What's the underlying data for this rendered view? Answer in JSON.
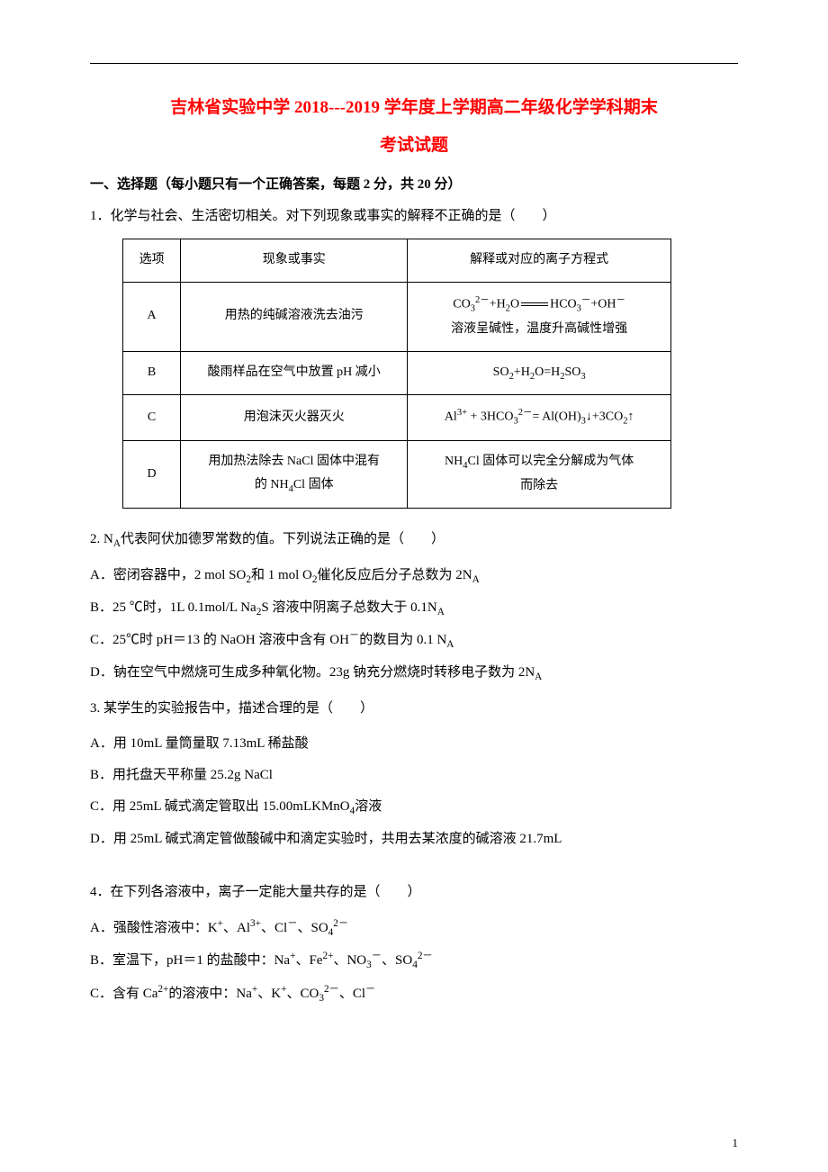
{
  "title_line1": "吉林省实验中学 2018---2019 学年度上学期高二年级化学学科期末",
  "title_line2": "考试试题",
  "section1_heading": "一、选择题（每小题只有一个正确答案，每题 2 分，共 20 分）",
  "q1": {
    "stem": "1．化学与社会、生活密切相关。对下列现象或事实的解释不正确的是（　　）",
    "header": {
      "c1": "选项",
      "c2": "现象或事实",
      "c3": "解释或对应的离子方程式"
    },
    "rows": [
      {
        "opt": "A",
        "fact": "用热的纯碱溶液洗去油污",
        "explain_html": "CO<sub>3</sub><sup>2－</sup>+H<sub>2</sub>O<span class=\"eqarrow\"></span>HCO<sub>3</sub><sup>－</sup>+OH<sup>－</sup><br>溶液呈碱性，温度升高碱性增强"
      },
      {
        "opt": "B",
        "fact": "酸雨样品在空气中放置 pH 减小",
        "explain_html": "SO<sub>2</sub>+H<sub>2</sub>O=H<sub>2</sub>SO<sub>3</sub>"
      },
      {
        "opt": "C",
        "fact": "用泡沫灭火器灭火",
        "explain_html": "Al<sup>3+</sup> + 3HCO<sub>3</sub><sup>2－</sup>= Al(OH)<sub>3</sub>↓+3CO<sub>2</sub>↑"
      },
      {
        "opt": "D",
        "fact_html": "用加热法除去 NaCl 固体中混有<br>的 NH<sub>4</sub>Cl 固体",
        "explain_html": "NH<sub>4</sub>Cl 固体可以完全分解成为气体<br>而除去"
      }
    ]
  },
  "q2": {
    "stem_html": "2. N<sub>A</sub>代表阿伏加德罗常数的值。下列说法正确的是（　　）",
    "A_html": "A．密闭容器中，2 mol SO<sub>2</sub>和 1 mol O<sub>2</sub>催化反应后分子总数为 2N<sub>A</sub>",
    "B_html": "B．25 ℃时，1L 0.1mol/L Na<sub>2</sub>S 溶液中阴离子总数大于 0.1N<sub>A</sub>",
    "C_html": "C．25℃时 pH＝13 的 NaOH 溶液中含有 OH<sup>－</sup>的数目为 0.1 N<sub>A</sub>",
    "D_html": "D．钠在空气中燃烧可生成多种氧化物。23g 钠充分燃烧时转移电子数为 2N<sub>A</sub>"
  },
  "q3": {
    "stem": "3. 某学生的实验报告中，描述合理的是（　　）",
    "A": "A．用 10mL 量筒量取 7.13mL 稀盐酸",
    "B": "B．用托盘天平称量 25.2g NaCl",
    "C_html": "C．用 25mL 碱式滴定管取出 15.00mLKMnO<sub>4</sub>溶液",
    "D": "D．用 25mL 碱式滴定管做酸碱中和滴定实验时，共用去某浓度的碱溶液 21.7mL"
  },
  "q4": {
    "stem": "4．在下列各溶液中，离子一定能大量共存的是（　　）",
    "A_html": "A．强酸性溶液中：K<sup>+</sup>、Al<sup>3+</sup>、Cl<sup>－</sup>、SO<sub>4</sub><sup>2－</sup>",
    "B_html": "B．室温下，pH＝1 的盐酸中：Na<sup>+</sup>、Fe<sup>2+</sup>、NO<sub>3</sub><sup>－</sup>、SO<sub>4</sub><sup>2－</sup>",
    "C_html": "C．含有 Ca<sup>2+</sup>的溶液中：Na<sup>+</sup>、K<sup>+</sup>、CO<sub>3</sub><sup>2－</sup>、Cl<sup>－</sup>"
  },
  "page_number": "1",
  "colors": {
    "title": "#ff0000",
    "text": "#000000",
    "bg": "#ffffff",
    "border": "#000000"
  }
}
